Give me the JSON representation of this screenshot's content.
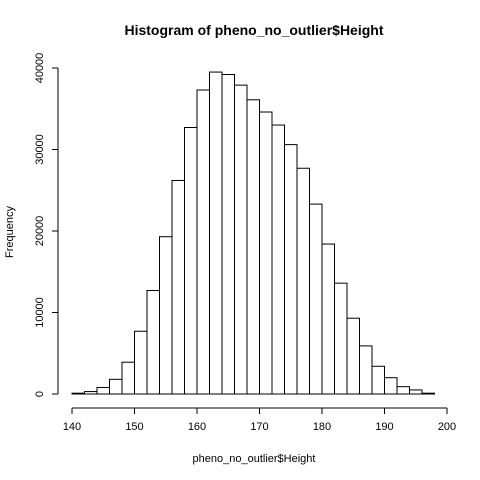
{
  "chart_data": {
    "type": "bar",
    "title": "Histogram of pheno_no_outlier$Height",
    "xlabel": "pheno_no_outlier$Height",
    "ylabel": "Frequency",
    "bin_width": 2,
    "bins_start": [
      140,
      142,
      144,
      146,
      148,
      150,
      152,
      154,
      156,
      158,
      160,
      162,
      164,
      166,
      168,
      170,
      172,
      174,
      176,
      178,
      180,
      182,
      184,
      186,
      188,
      190,
      192,
      194,
      196
    ],
    "values": [
      100,
      300,
      800,
      1800,
      3900,
      7700,
      12700,
      19300,
      26200,
      32700,
      37300,
      39500,
      39200,
      37900,
      36100,
      34600,
      33000,
      30600,
      27700,
      23300,
      18400,
      13600,
      9300,
      5900,
      3400,
      2000,
      900,
      500,
      100
    ],
    "xlim": [
      140,
      200
    ],
    "ylim": [
      0,
      40000
    ],
    "x_ticks": [
      "140",
      "150",
      "160",
      "170",
      "180",
      "190",
      "200"
    ],
    "y_ticks": [
      "0",
      "10000",
      "20000",
      "30000",
      "40000"
    ],
    "grid": false,
    "legend": "none"
  }
}
